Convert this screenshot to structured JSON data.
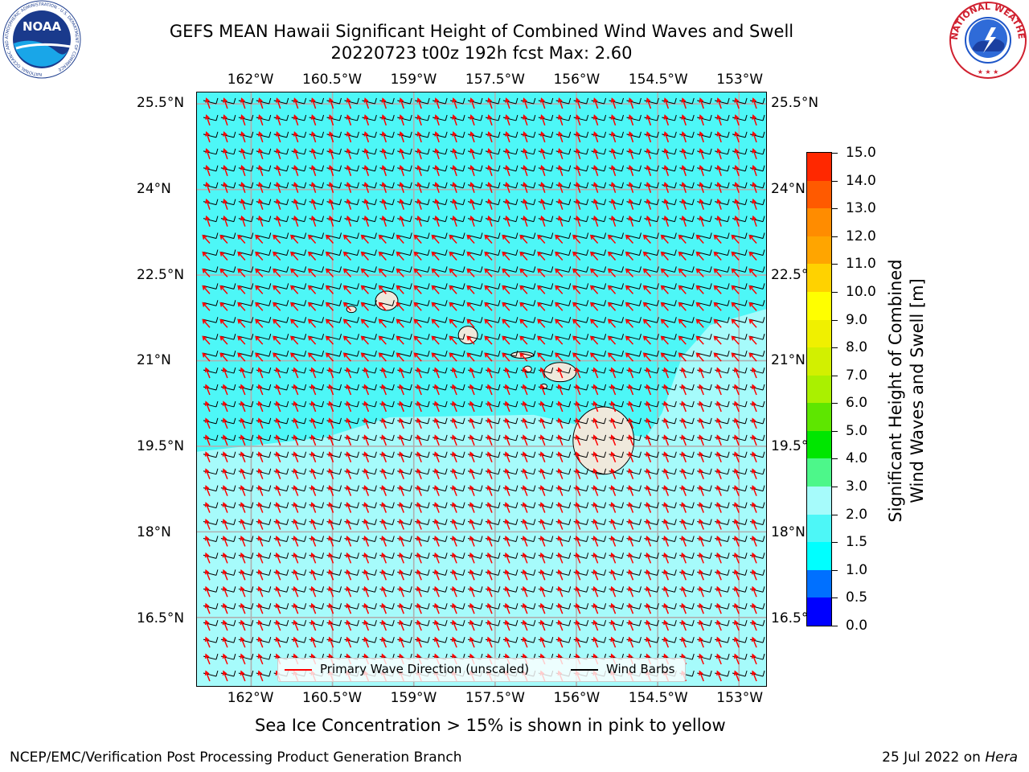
{
  "header": {
    "title_line1": "GEFS MEAN Hawaii Significant Height of Combined Wind Waves and Swell",
    "title_line2": "20220723 t00z 192h fcst   Max: 2.60"
  },
  "logos": {
    "noaa_text": "NOAA",
    "noaa_ring": "NATIONAL OCEANIC AND ATMOSPHERIC ADMINISTRATION · U.S. DEPARTMENT OF COMMERCE",
    "nws_ring": "NATIONAL WEATHER SERVICE"
  },
  "map": {
    "longitude_ticks": [
      "162°W",
      "160.5°W",
      "159°W",
      "157.5°W",
      "156°W",
      "154.5°W",
      "153°W"
    ],
    "latitude_ticks": [
      "25.5°N",
      "24°N",
      "22.5°N",
      "21°N",
      "19.5°N",
      "18°N",
      "16.5°N"
    ],
    "lon_range": [
      -163,
      -152.5
    ],
    "lat_range": [
      15.3,
      25.7
    ],
    "ocean_colors": {
      "band_1_5_to_2": "#4df7f7",
      "band_2_to_3": "#a6fbfb"
    },
    "land_color": "#efe9dc",
    "wave_direction_color": "#ff0000",
    "wind_barb_color": "#000000"
  },
  "legend": {
    "wave_label": "Primary Wave Direction (unscaled)",
    "barb_label": "Wind Barbs"
  },
  "colorbar": {
    "label_line1": "Significant Height of Combined",
    "label_line2": "Wind Waves and Swell [m]",
    "ticks": [
      "0.0",
      "0.5",
      "1.0",
      "1.5",
      "2.0",
      "3.0",
      "4.0",
      "5.0",
      "6.0",
      "7.0",
      "8.0",
      "9.0",
      "10.0",
      "11.0",
      "12.0",
      "13.0",
      "14.0",
      "15.0"
    ],
    "colors": [
      "#0000ff",
      "#0070ff",
      "#00ffff",
      "#4df7f7",
      "#a6fbfb",
      "#4df78a",
      "#00e600",
      "#5ee600",
      "#aaf000",
      "#d2f000",
      "#f0f000",
      "#ffff00",
      "#ffd200",
      "#ffa500",
      "#ff8c00",
      "#ff5a00",
      "#ff2800"
    ]
  },
  "chart_data": {
    "type": "heatmap",
    "variable": "Significant Height of Combined Wind Waves and Swell",
    "units": "m",
    "max": 2.6,
    "islands": [
      {
        "lon": -159.5,
        "lat": 22.05
      },
      {
        "lon": -160.15,
        "lat": 21.9
      },
      {
        "lon": -158.0,
        "lat": 21.45
      },
      {
        "lon": -157.0,
        "lat": 21.1
      },
      {
        "lon": -156.9,
        "lat": 20.85
      },
      {
        "lon": -156.3,
        "lat": 20.8
      },
      {
        "lon": -156.6,
        "lat": 20.55
      },
      {
        "lon": -155.5,
        "lat": 19.6
      }
    ]
  },
  "footer": {
    "sea_ice_note": "Sea Ice Concentration > 15% is shown in pink to yellow",
    "left": "NCEP/EMC/Verification Post Processing Product Generation Branch",
    "right_date": "25 Jul 2022 on ",
    "right_host": "Hera"
  }
}
